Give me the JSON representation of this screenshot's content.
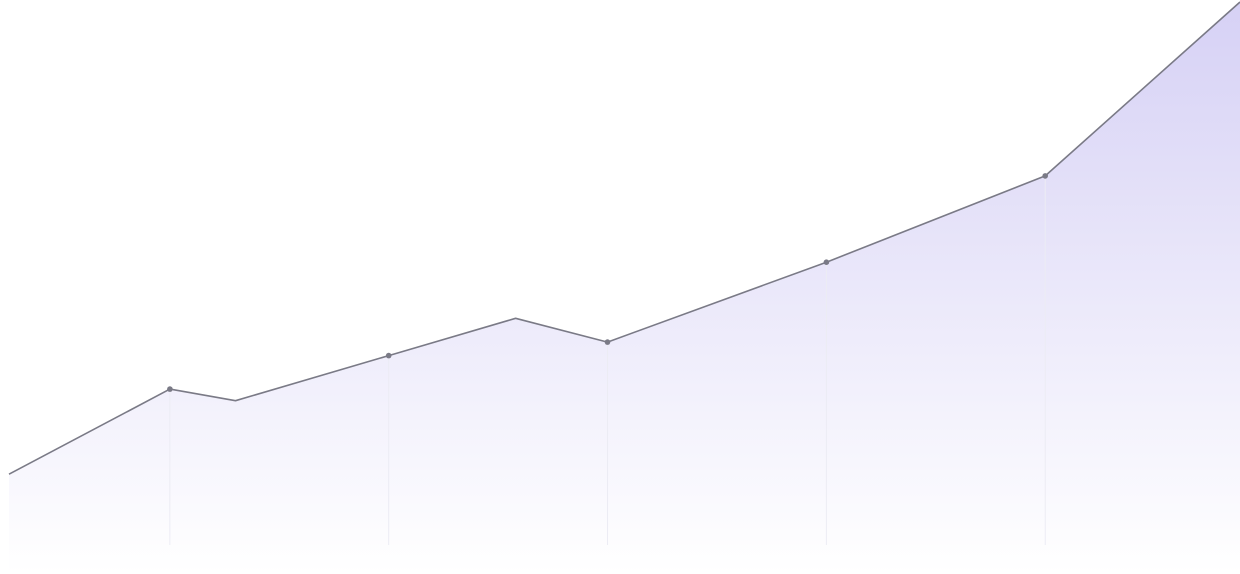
{
  "chart_data": {
    "type": "area",
    "title": "",
    "xlabel": "",
    "ylabel": "",
    "x": [
      0,
      1.47,
      2.07,
      3.47,
      4.63,
      5.47,
      7.47,
      9.47,
      11.25
    ],
    "values": [
      0,
      13.2,
      11.4,
      18.4,
      24.2,
      20.5,
      32.9,
      46.3,
      73.3
    ],
    "marker_x": [
      1.47,
      3.47,
      5.47,
      7.47,
      9.47
    ],
    "xlim": [
      0,
      11.25
    ],
    "ylim": [
      -15.5,
      73.3
    ],
    "grid": false,
    "legend": "none",
    "colors": {
      "line": "#7a7a86",
      "marker": "#7a7a86",
      "fill_top": "#d6d1f5",
      "fill_bottom": "#ffffff",
      "drop_line": "#ececf4"
    }
  }
}
